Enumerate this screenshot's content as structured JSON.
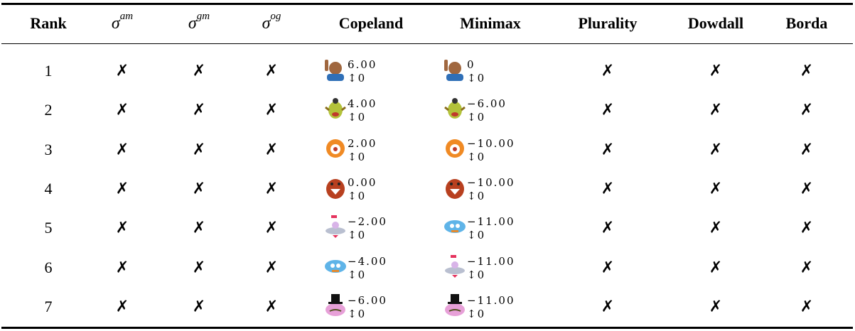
{
  "table": {
    "header": [
      {
        "text": "Rank"
      },
      {
        "base": "σ",
        "sup": "am"
      },
      {
        "base": "σ",
        "sup": "gm"
      },
      {
        "base": "σ",
        "sup": "og"
      },
      {
        "text": "Copeland"
      },
      {
        "text": "Minimax"
      },
      {
        "text": "Plurality"
      },
      {
        "text": "Dowdall"
      },
      {
        "text": "Borda"
      }
    ],
    "rows": [
      [
        "1",
        "✗",
        "✗",
        "✗",
        {
          "score": "6.00",
          "change": "↕0"
        },
        {
          "score": "0",
          "change": "↕0"
        },
        "✗",
        "✗",
        "✗"
      ],
      [
        "2",
        "✗",
        "✗",
        "✗",
        {
          "score": "4.00",
          "change": "↕0"
        },
        {
          "score": "−6.00",
          "change": "↕0"
        },
        "✗",
        "✗",
        "✗"
      ],
      [
        "3",
        "✗",
        "✗",
        "✗",
        {
          "score": "2.00",
          "change": "↕0"
        },
        {
          "score": "−10.00",
          "change": "↕0"
        },
        "✗",
        "✗",
        "✗"
      ],
      [
        "4",
        "✗",
        "✗",
        "✗",
        {
          "score": "0.00",
          "change": "↕0"
        },
        {
          "score": "−10.00",
          "change": "↕0"
        },
        "✗",
        "✗",
        "✗"
      ],
      [
        "5",
        "✗",
        "✗",
        "✗",
        {
          "score": "−2.00",
          "change": "↕0"
        },
        {
          "score": "−11.00",
          "change": "↕0"
        },
        "✗",
        "✗",
        "✗"
      ],
      [
        "6",
        "✗",
        "✗",
        "✗",
        {
          "score": "−4.00",
          "change": "↕0"
        },
        {
          "score": "−11.00",
          "change": "↕0"
        },
        "✗",
        "✗",
        "✗"
      ],
      [
        "7",
        "✗",
        "✗",
        "✗",
        {
          "score": "−6.00",
          "change": "↕0"
        },
        {
          "score": "−11.00",
          "change": "↕0"
        },
        "✗",
        "✗",
        "✗"
      ]
    ]
  }
}
